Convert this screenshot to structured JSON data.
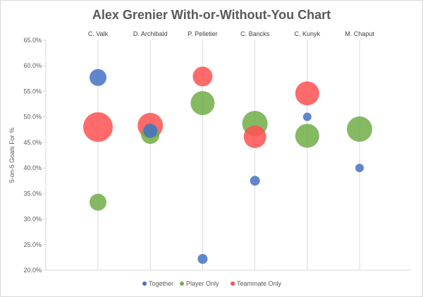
{
  "chart_data": {
    "type": "scatter",
    "title": "Alex Grenier With-or-Without-You Chart",
    "ylabel": "5-on-5 Goals For %",
    "xlabel": "",
    "categories": [
      "C. Valk",
      "D. Archibald",
      "P. Pelletier",
      "C. Bancks",
      "C. Kunyk",
      "M. Chaput"
    ],
    "ylim": [
      20.0,
      65.0
    ],
    "yticks": [
      "20.0%",
      "25.0%",
      "30.0%",
      "35.0%",
      "40.0%",
      "45.0%",
      "50.0%",
      "55.0%",
      "60.0%",
      "65.0%"
    ],
    "grid": "vertical lines at categories",
    "legend_position": "bottom",
    "bubble": true,
    "series": [
      {
        "name": "Together",
        "color": "#4472c4",
        "points": [
          {
            "category": "C. Valk",
            "y": 57.7,
            "size": 12
          },
          {
            "category": "D. Archibald",
            "y": 47.3,
            "size": 10
          },
          {
            "category": "P. Pelletier",
            "y": 22.2,
            "size": 7
          },
          {
            "category": "C. Bancks",
            "y": 37.5,
            "size": 7
          },
          {
            "category": "C. Kunyk",
            "y": 50.0,
            "size": 6
          },
          {
            "category": "M. Chaput",
            "y": 40.0,
            "size": 6
          }
        ]
      },
      {
        "name": "Player Only",
        "color": "#70ad47",
        "points": [
          {
            "category": "C. Valk",
            "y": 33.3,
            "size": 12
          },
          {
            "category": "D. Archibald",
            "y": 46.5,
            "size": 13
          },
          {
            "category": "P. Pelletier",
            "y": 52.7,
            "size": 17
          },
          {
            "category": "C. Bancks",
            "y": 48.7,
            "size": 18
          },
          {
            "category": "C. Kunyk",
            "y": 46.3,
            "size": 17
          },
          {
            "category": "M. Chaput",
            "y": 47.6,
            "size": 18
          }
        ]
      },
      {
        "name": "Teammate Only",
        "color": "#ff5050",
        "points": [
          {
            "category": "C. Valk",
            "y": 48.0,
            "size": 21
          },
          {
            "category": "D. Archibald",
            "y": 48.3,
            "size": 18
          },
          {
            "category": "P. Pelletier",
            "y": 57.9,
            "size": 14
          },
          {
            "category": "C. Bancks",
            "y": 46.1,
            "size": 16
          },
          {
            "category": "C. Kunyk",
            "y": 54.6,
            "size": 17
          }
        ]
      }
    ]
  }
}
